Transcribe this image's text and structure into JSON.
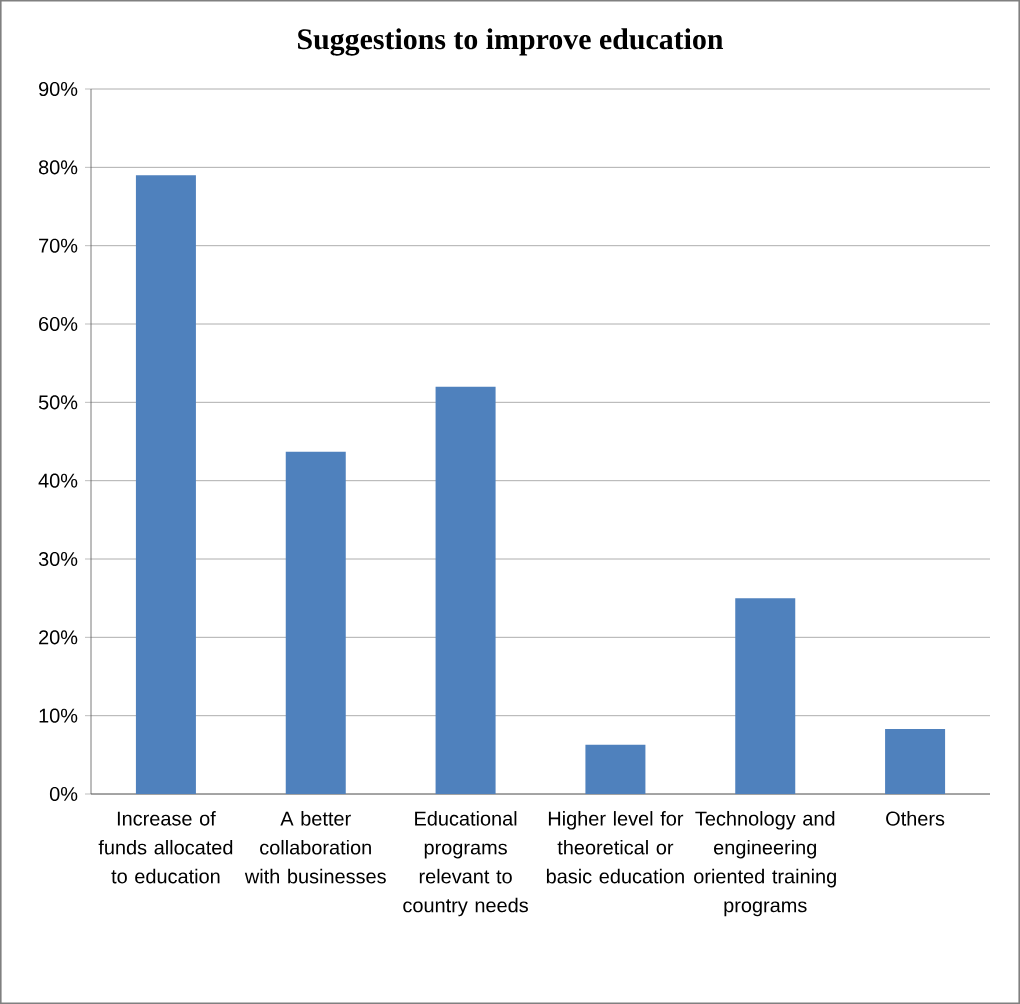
{
  "chart_data": {
    "type": "bar",
    "title": "Suggestions to improve education",
    "categories": [
      "Increase of funds allocated to education",
      "A better collaboration with businesses",
      "Educational programs relevant to country needs",
      "Higher level for theoretical or basic education",
      "Technology and engineering oriented training programs",
      "Others"
    ],
    "values": [
      79,
      43.7,
      52,
      6.3,
      25,
      8.3
    ],
    "color": "#4f81bd",
    "ylim": [
      0,
      90
    ],
    "yticks": [
      {
        "value": 0,
        "label": "0%"
      },
      {
        "value": 10,
        "label": "10%"
      },
      {
        "value": 20,
        "label": "20%"
      },
      {
        "value": 30,
        "label": "30%"
      },
      {
        "value": 40,
        "label": "40%"
      },
      {
        "value": 50,
        "label": "50%"
      },
      {
        "value": 60,
        "label": "60%"
      },
      {
        "value": 70,
        "label": "70%"
      },
      {
        "value": 80,
        "label": "80%"
      },
      {
        "value": 90,
        "label": "90%"
      }
    ],
    "grid": "y"
  }
}
